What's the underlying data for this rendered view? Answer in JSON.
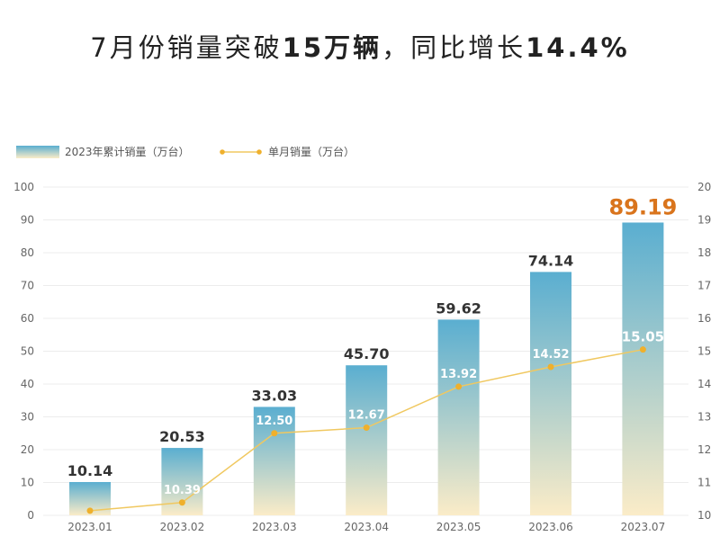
{
  "headline": {
    "part1": "7月份销量突破",
    "part2": "15万辆",
    "part3": "，同比增长",
    "part4": "14.4%"
  },
  "colors": {
    "bar_top": "#5aaed0",
    "bar_bottom": "#fbecc8",
    "line": "#f0c860",
    "point": "#efb02c",
    "highlight": "#d9741c",
    "grid": "#ececec"
  },
  "chart_data": {
    "type": "bar",
    "categories": [
      "2023.01",
      "2023.02",
      "2023.03",
      "2023.04",
      "2023.05",
      "2023.06",
      "2023.07"
    ],
    "series": [
      {
        "name": "2023年累计销量（万台）",
        "type": "bar",
        "axis": "left",
        "values": [
          10.14,
          20.53,
          33.03,
          45.7,
          59.62,
          74.14,
          89.19
        ],
        "labels": [
          "10.14",
          "20.53",
          "33.03",
          "45.70",
          "59.62",
          "74.14",
          "89.19"
        ]
      },
      {
        "name": "单月销量（万台）",
        "type": "line",
        "axis": "right",
        "values": [
          10.14,
          10.39,
          12.5,
          12.67,
          13.92,
          14.52,
          15.05
        ],
        "labels": [
          "",
          "10.39",
          "12.50",
          "12.67",
          "13.92",
          "14.52",
          "15.05"
        ]
      }
    ],
    "left_axis": {
      "min": 0,
      "max": 100,
      "ticks": [
        0,
        10,
        20,
        30,
        40,
        50,
        60,
        70,
        80,
        90,
        100
      ]
    },
    "right_axis": {
      "min": 10,
      "max": 20,
      "ticks": [
        10,
        11,
        12,
        13,
        14,
        15,
        16,
        17,
        18,
        19,
        20
      ]
    },
    "grid": true,
    "legend": "top-left"
  }
}
